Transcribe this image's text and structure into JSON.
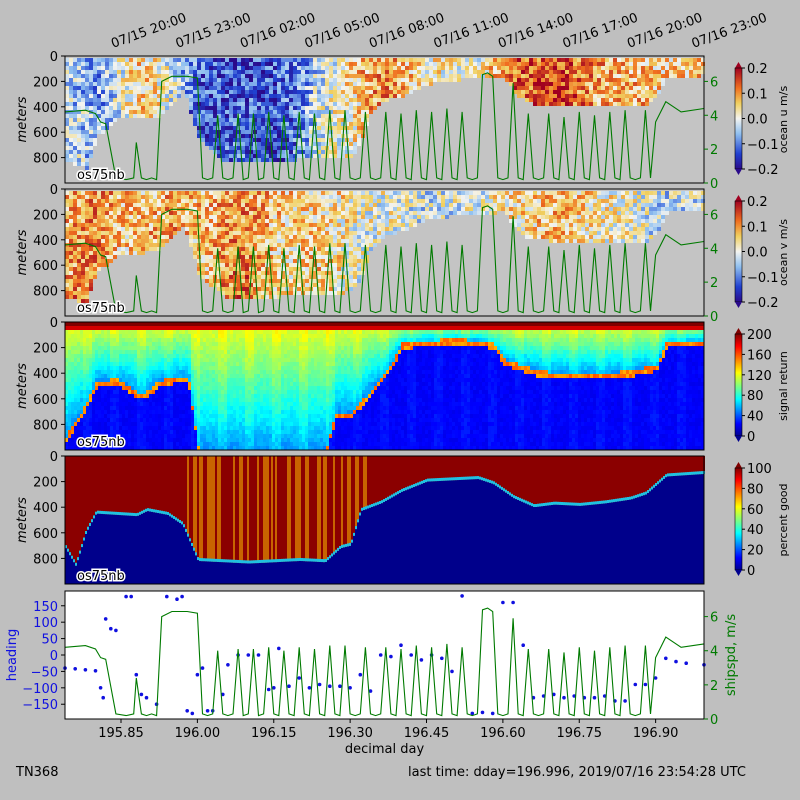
{
  "colors": {
    "figure_background": "#bfbfbf",
    "no_data_gray": "#c4c4c4",
    "shipspd_green": "#007a00",
    "heading_blue": "#1010e0",
    "pg_low_blue": "#00008b",
    "pg_high_red": "#8b0000"
  },
  "top_time_labels": [
    "07/15 20:00",
    "07/15 23:00",
    "07/16 02:00",
    "07/16 05:00",
    "07/16 08:00",
    "07/16 11:00",
    "07/16 14:00",
    "07/16 17:00",
    "07/16 20:00",
    "07/16 23:00"
  ],
  "footer": {
    "cruise": "TN368",
    "last_time": "last time: dday=196.996,  2019/07/16 23:54:28 UTC"
  },
  "chart_data": [
    {
      "type": "heatmap",
      "panel": "ocean_u",
      "instrument_label": "os75nb",
      "ylabel": "meters",
      "yticks": [
        0,
        200,
        400,
        600,
        800
      ],
      "ylim": [
        1000,
        0
      ],
      "xlim": [
        195.74,
        196.995
      ],
      "colorbar": {
        "label": "ocean u m/s",
        "ticks": [
          "0.2",
          "0.1",
          "0.0",
          "−0.1",
          "−0.2"
        ],
        "range": [
          -0.2,
          0.2
        ],
        "colormap": "rainbow-diverging"
      },
      "right_axis": {
        "ticks": [
          "0",
          "2",
          "4",
          "6"
        ],
        "range": [
          0,
          7.5
        ],
        "color": "green"
      },
      "data_depth_m": [
        [
          195.74,
          820
        ],
        [
          195.78,
          870
        ],
        [
          195.8,
          620
        ],
        [
          195.82,
          560
        ],
        [
          195.84,
          480
        ],
        [
          195.86,
          470
        ],
        [
          195.88,
          480
        ],
        [
          195.9,
          460
        ],
        [
          195.92,
          470
        ],
        [
          195.95,
          350
        ],
        [
          195.97,
          250
        ],
        [
          196.0,
          640
        ],
        [
          196.05,
          820
        ],
        [
          196.1,
          830
        ],
        [
          196.15,
          820
        ],
        [
          196.2,
          800
        ],
        [
          196.25,
          790
        ],
        [
          196.3,
          780
        ],
        [
          196.32,
          660
        ],
        [
          196.34,
          420
        ],
        [
          196.37,
          330
        ],
        [
          196.4,
          300
        ],
        [
          196.45,
          210
        ],
        [
          196.5,
          180
        ],
        [
          196.55,
          160
        ],
        [
          196.6,
          150
        ],
        [
          196.62,
          280
        ],
        [
          196.65,
          360
        ],
        [
          196.7,
          380
        ],
        [
          196.75,
          380
        ],
        [
          196.8,
          390
        ],
        [
          196.85,
          380
        ],
        [
          196.88,
          380
        ],
        [
          196.9,
          310
        ],
        [
          196.92,
          150
        ],
        [
          196.995,
          140
        ]
      ],
      "u_profile": [
        [
          195.74,
          -0.05
        ],
        [
          195.8,
          -0.08
        ],
        [
          195.88,
          0.06
        ],
        [
          195.95,
          -0.02
        ],
        [
          196.0,
          -0.12
        ],
        [
          196.1,
          -0.14
        ],
        [
          196.2,
          -0.09
        ],
        [
          196.3,
          0.05
        ],
        [
          196.35,
          0.1
        ],
        [
          196.45,
          0.03
        ],
        [
          196.55,
          0.0
        ],
        [
          196.6,
          0.12
        ],
        [
          196.7,
          0.15
        ],
        [
          196.8,
          0.08
        ],
        [
          196.9,
          0.05
        ],
        [
          196.995,
          0.06
        ]
      ]
    },
    {
      "type": "heatmap",
      "panel": "ocean_v",
      "instrument_label": "os75nb",
      "ylabel": "meters",
      "yticks": [
        0,
        200,
        400,
        600,
        800
      ],
      "ylim": [
        1000,
        0
      ],
      "colorbar": {
        "label": "ocean v m/s",
        "ticks": [
          "0.2",
          "0.1",
          "0.0",
          "−0.1",
          "−0.2"
        ],
        "range": [
          -0.2,
          0.2
        ],
        "colormap": "rainbow-diverging"
      },
      "right_axis": {
        "ticks": [
          "0",
          "2",
          "4",
          "6"
        ],
        "range": [
          0,
          7.5
        ],
        "color": "green"
      },
      "v_profile": [
        [
          195.74,
          0.06
        ],
        [
          195.8,
          0.1
        ],
        [
          195.88,
          0.05
        ],
        [
          195.95,
          0.08
        ],
        [
          196.0,
          0.07
        ],
        [
          196.1,
          0.09
        ],
        [
          196.2,
          0.04
        ],
        [
          196.3,
          0.03
        ],
        [
          196.35,
          0.0
        ],
        [
          196.45,
          -0.02
        ],
        [
          196.55,
          0.0
        ],
        [
          196.6,
          0.04
        ],
        [
          196.7,
          0.06
        ],
        [
          196.8,
          0.03
        ],
        [
          196.9,
          -0.03
        ],
        [
          196.995,
          -0.02
        ]
      ]
    },
    {
      "type": "heatmap",
      "panel": "signal_return",
      "instrument_label": "os75nb",
      "ylabel": "meters",
      "yticks": [
        0,
        200,
        400,
        600,
        800
      ],
      "ylim": [
        1000,
        0
      ],
      "colorbar": {
        "label": "signal return",
        "ticks": [
          "200",
          "160",
          "120",
          "80",
          "40",
          "0"
        ],
        "range": [
          0,
          200
        ],
        "colormap": "jet"
      },
      "bottom_return_depth_m": [
        [
          195.74,
          900
        ],
        [
          195.78,
          640
        ],
        [
          195.8,
          470
        ],
        [
          195.84,
          450
        ],
        [
          195.86,
          500
        ],
        [
          195.88,
          560
        ],
        [
          195.9,
          550
        ],
        [
          195.92,
          470
        ],
        [
          195.95,
          440
        ],
        [
          195.98,
          440
        ],
        [
          196.0,
          1000
        ],
        [
          196.05,
          1000
        ],
        [
          196.1,
          1000
        ],
        [
          196.2,
          1000
        ],
        [
          196.25,
          1000
        ],
        [
          196.27,
          720
        ],
        [
          196.3,
          710
        ],
        [
          196.33,
          580
        ],
        [
          196.36,
          420
        ],
        [
          196.38,
          320
        ],
        [
          196.4,
          170
        ],
        [
          196.45,
          150
        ],
        [
          196.5,
          140
        ],
        [
          196.55,
          150
        ],
        [
          196.58,
          170
        ],
        [
          196.6,
          300
        ],
        [
          196.64,
          350
        ],
        [
          196.67,
          390
        ],
        [
          196.7,
          400
        ],
        [
          196.75,
          410
        ],
        [
          196.8,
          400
        ],
        [
          196.85,
          390
        ],
        [
          196.9,
          340
        ],
        [
          196.92,
          160
        ],
        [
          196.995,
          155
        ]
      ]
    },
    {
      "type": "heatmap",
      "panel": "percent_good",
      "instrument_label": "os75nb",
      "ylabel": "meters",
      "yticks": [
        0,
        200,
        400,
        600,
        800
      ],
      "ylim": [
        1000,
        0
      ],
      "colorbar": {
        "label": "percent good",
        "ticks": [
          "100",
          "80",
          "60",
          "40",
          "20",
          "0"
        ],
        "range": [
          0,
          100
        ],
        "colormap": "jet"
      },
      "good_depth_m": [
        [
          195.74,
          720
        ],
        [
          195.76,
          860
        ],
        [
          195.78,
          600
        ],
        [
          195.8,
          450
        ],
        [
          195.84,
          460
        ],
        [
          195.88,
          470
        ],
        [
          195.9,
          430
        ],
        [
          195.94,
          460
        ],
        [
          195.97,
          540
        ],
        [
          196.0,
          820
        ],
        [
          196.05,
          830
        ],
        [
          196.1,
          840
        ],
        [
          196.15,
          830
        ],
        [
          196.2,
          820
        ],
        [
          196.25,
          830
        ],
        [
          196.28,
          720
        ],
        [
          196.3,
          700
        ],
        [
          196.32,
          430
        ],
        [
          196.36,
          370
        ],
        [
          196.4,
          280
        ],
        [
          196.45,
          200
        ],
        [
          196.5,
          190
        ],
        [
          196.55,
          180
        ],
        [
          196.58,
          220
        ],
        [
          196.62,
          330
        ],
        [
          196.66,
          400
        ],
        [
          196.7,
          380
        ],
        [
          196.75,
          390
        ],
        [
          196.8,
          370
        ],
        [
          196.85,
          340
        ],
        [
          196.88,
          300
        ],
        [
          196.92,
          160
        ],
        [
          196.995,
          140
        ]
      ]
    },
    {
      "type": "line",
      "panel": "heading_shipspd",
      "xlabel": "decimal day",
      "ylabel_left": "heading",
      "ylabel_right": "shipspd, m/s",
      "x_ticks": [
        "195.85",
        "196.00",
        "196.15",
        "196.30",
        "196.45",
        "196.60",
        "196.75",
        "196.90"
      ],
      "xlim": [
        195.74,
        196.995
      ],
      "left_ticks": [
        "150",
        "100",
        "50",
        "0",
        "−50",
        "−100",
        "−150"
      ],
      "left_range": [
        -195,
        195
      ],
      "right_ticks": [
        "0",
        "2",
        "4",
        "6"
      ],
      "right_range": [
        0,
        7.5
      ],
      "series": [
        {
          "name": "heading",
          "style": "dots",
          "x": [
            195.74,
            195.76,
            195.78,
            195.8,
            195.81,
            195.815,
            195.82,
            195.83,
            195.84,
            195.86,
            195.87,
            195.88,
            195.89,
            195.9,
            195.92,
            195.94,
            195.96,
            195.97,
            195.98,
            195.99,
            196.0,
            196.01,
            196.02,
            196.03,
            196.05,
            196.06,
            196.08,
            196.1,
            196.12,
            196.14,
            196.15,
            196.16,
            196.18,
            196.2,
            196.22,
            196.24,
            196.26,
            196.28,
            196.3,
            196.32,
            196.34,
            196.36,
            196.38,
            196.4,
            196.42,
            196.44,
            196.46,
            196.48,
            196.5,
            196.52,
            196.54,
            196.56,
            196.58,
            196.6,
            196.62,
            196.64,
            196.66,
            196.68,
            196.7,
            196.72,
            196.74,
            196.76,
            196.78,
            196.8,
            196.82,
            196.84,
            196.86,
            196.88,
            196.9,
            196.92,
            196.94,
            196.96,
            196.995
          ],
          "y": [
            -40,
            -42,
            -45,
            -48,
            -100,
            -130,
            110,
            80,
            75,
            178,
            178,
            -60,
            -120,
            -130,
            -150,
            178,
            170,
            178,
            -170,
            -178,
            -60,
            -40,
            -170,
            -170,
            -120,
            -30,
            0,
            0,
            0,
            -105,
            -100,
            20,
            -95,
            -70,
            -100,
            -90,
            -95,
            -95,
            -100,
            -60,
            -110,
            0,
            -5,
            30,
            0,
            -15,
            0,
            -10,
            -50,
            180,
            -178,
            -175,
            -178,
            160,
            160,
            30,
            -130,
            -125,
            -120,
            -130,
            -125,
            -130,
            -130,
            -125,
            -140,
            -140,
            -90,
            -90,
            -70,
            -10,
            -20,
            -25,
            -30
          ]
        },
        {
          "name": "shipspd",
          "style": "line",
          "x": [
            195.74,
            195.78,
            195.8,
            195.81,
            195.82,
            195.84,
            195.86,
            195.875,
            195.88,
            195.89,
            195.9,
            195.91,
            195.92,
            195.93,
            195.95,
            195.98,
            196.0,
            196.01,
            196.02,
            196.03,
            196.04,
            196.05,
            196.06,
            196.07,
            196.08,
            196.09,
            196.1,
            196.11,
            196.12,
            196.13,
            196.14,
            196.15,
            196.16,
            196.17,
            196.18,
            196.19,
            196.2,
            196.21,
            196.22,
            196.23,
            196.24,
            196.25,
            196.26,
            196.27,
            196.28,
            196.29,
            196.3,
            196.31,
            196.32,
            196.33,
            196.34,
            196.35,
            196.36,
            196.37,
            196.38,
            196.39,
            196.4,
            196.41,
            196.42,
            196.43,
            196.44,
            196.45,
            196.46,
            196.47,
            196.48,
            196.49,
            196.5,
            196.51,
            196.52,
            196.53,
            196.54,
            196.55,
            196.56,
            196.57,
            196.58,
            196.59,
            196.6,
            196.61,
            196.62,
            196.63,
            196.64,
            196.65,
            196.66,
            196.67,
            196.68,
            196.69,
            196.7,
            196.71,
            196.72,
            196.73,
            196.74,
            196.75,
            196.76,
            196.77,
            196.78,
            196.79,
            196.8,
            196.81,
            196.82,
            196.83,
            196.84,
            196.85,
            196.86,
            196.87,
            196.88,
            196.89,
            196.9,
            196.92,
            196.95,
            196.995
          ],
          "y": [
            4.2,
            4.3,
            4.1,
            3.6,
            3.5,
            0.3,
            0.2,
            0.3,
            2.4,
            0.3,
            0.2,
            0.3,
            0.2,
            6.0,
            6.3,
            6.3,
            6.2,
            0.3,
            0.2,
            0.3,
            4.0,
            0.3,
            0.2,
            0.3,
            4.1,
            0.2,
            0.3,
            4.1,
            0.2,
            0.3,
            4.2,
            0.3,
            0.2,
            4.0,
            0.3,
            0.2,
            4.2,
            0.3,
            0.2,
            4.1,
            0.3,
            0.2,
            4.3,
            0.3,
            0.2,
            4.3,
            0.3,
            0.2,
            0.3,
            4.2,
            0.3,
            0.2,
            0.3,
            4.2,
            0.3,
            0.2,
            4.1,
            0.3,
            0.2,
            4.3,
            0.3,
            0.2,
            4.2,
            0.3,
            0.2,
            4.4,
            0.3,
            0.2,
            4.2,
            0.3,
            0.2,
            0.3,
            6.4,
            6.5,
            6.3,
            0.3,
            0.2,
            0.3,
            5.9,
            0.3,
            0.2,
            4.1,
            0.3,
            0.2,
            0.3,
            4.1,
            0.3,
            0.2,
            3.9,
            0.3,
            0.2,
            4.2,
            0.3,
            0.2,
            4.0,
            0.3,
            0.2,
            4.2,
            0.3,
            0.2,
            4.3,
            0.3,
            0.2,
            0.3,
            4.3,
            0.3,
            3.6,
            4.8,
            4.2,
            4.4
          ]
        }
      ]
    }
  ]
}
